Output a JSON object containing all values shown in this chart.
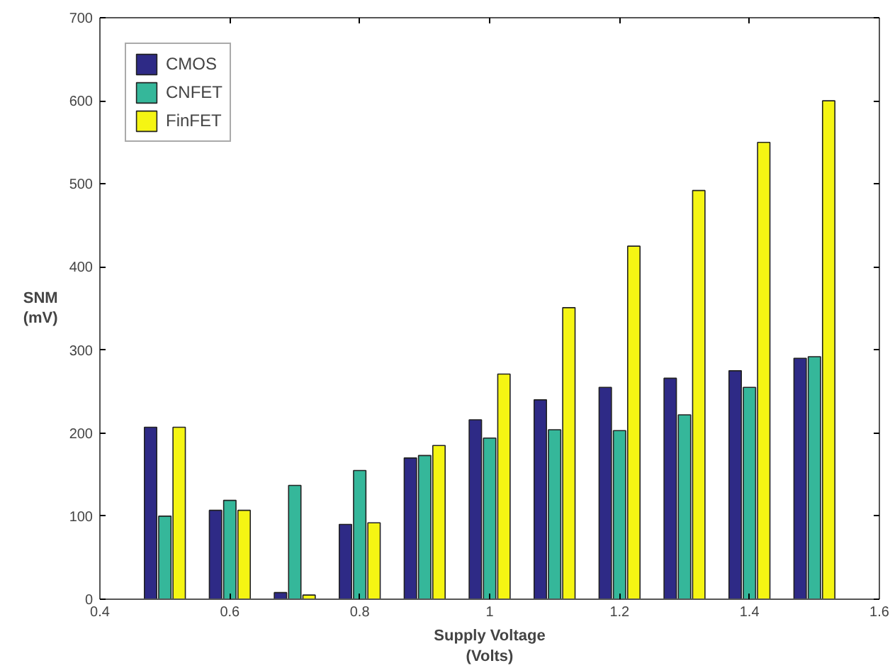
{
  "chart_data": {
    "type": "bar",
    "xlabel": "Supply Voltage\n(Volts)",
    "ylabel": "SNM\n(mV)",
    "x": [
      0.5,
      0.6,
      0.7,
      0.8,
      0.9,
      1.0,
      1.1,
      1.2,
      1.3,
      1.4,
      1.5
    ],
    "series": [
      {
        "name": "CMOS",
        "color": "#2e2a86",
        "values": [
          207,
          107,
          8,
          90,
          170,
          216,
          240,
          255,
          266,
          275,
          290
        ]
      },
      {
        "name": "CNFET",
        "color": "#35b79a",
        "values": [
          100,
          119,
          137,
          155,
          173,
          194,
          204,
          203,
          222,
          255,
          292
        ]
      },
      {
        "name": "FinFET",
        "color": "#f5f513",
        "values": [
          207,
          107,
          5,
          92,
          185,
          271,
          351,
          425,
          492,
          550,
          600
        ]
      }
    ],
    "xlim": [
      0.4,
      1.6
    ],
    "xticks": [
      0.4,
      0.6,
      0.8,
      {
        "value": 1.0,
        "label": "1"
      },
      1.2,
      1.4,
      1.6
    ],
    "ylim": [
      0,
      700
    ],
    "yticks": [
      0,
      100,
      200,
      300,
      400,
      500,
      600,
      700
    ],
    "grid": false,
    "legend": "top left"
  }
}
